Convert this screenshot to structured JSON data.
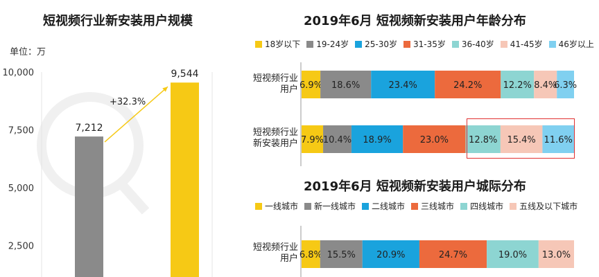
{
  "colors": {
    "yellow": "#f6c915",
    "gray": "#8a8a8a",
    "blue": "#1aa3dd",
    "orange": "#ec6a3d",
    "teal": "#8dd5d2",
    "pink": "#f6c7b7",
    "lightblue": "#80d0f0",
    "arrow": "#f6c915",
    "highlight": "#e03030"
  },
  "chart_data": [
    {
      "type": "bar",
      "title": "短视频行业新安装用户规模",
      "unit_label": "单位：万",
      "categories": [
        "",
        ""
      ],
      "values": [
        7212,
        9544
      ],
      "value_labels": [
        "7,212",
        "9,544"
      ],
      "bar_colors": [
        "#8a8a8a",
        "#f6c915"
      ],
      "yticks": [
        "2,500",
        "5,000",
        "7,500",
        "10,000"
      ],
      "ytick_values": [
        2500,
        5000,
        7500,
        10000
      ],
      "ylim": [
        0,
        10000
      ],
      "growth_label": "+32.3%"
    },
    {
      "type": "bar",
      "stacked": true,
      "orientation": "horizontal",
      "title": "2019年6月 短视频新安装用户年龄分布",
      "legend": [
        "18岁以下",
        "19-24岁",
        "25-30岁",
        "31-35岁",
        "36-40岁",
        "41-45岁",
        "46岁以上"
      ],
      "legend_colors": [
        "#f6c915",
        "#8a8a8a",
        "#1aa3dd",
        "#ec6a3d",
        "#8dd5d2",
        "#f6c7b7",
        "#80d0f0"
      ],
      "categories": [
        "短视频行业用户",
        "短视频行业新安装用户"
      ],
      "category_lines": [
        [
          "短视频行业",
          "用户"
        ],
        [
          "短视频行业",
          "新安装用户"
        ]
      ],
      "series_values": [
        [
          6.9,
          18.6,
          23.4,
          24.2,
          12.2,
          8.4,
          6.3
        ],
        [
          7.9,
          10.4,
          18.9,
          23.0,
          12.8,
          15.4,
          11.6
        ]
      ],
      "series_labels": [
        [
          "6.9%",
          "18.6%",
          "23.4%",
          "24.2%",
          "12.2%",
          "8.4%",
          "6.3%"
        ],
        [
          "7.9%",
          "10.4%",
          "18.9%",
          "23.0%",
          "12.8%",
          "15.4%",
          "11.6%"
        ]
      ]
    },
    {
      "type": "bar",
      "stacked": true,
      "orientation": "horizontal",
      "title": "2019年6月 短视频新安装用户城际分布",
      "legend": [
        "一线城市",
        "新一线城市",
        "二线城市",
        "三线城市",
        "四线城市",
        "五线及以下城市"
      ],
      "legend_colors": [
        "#f6c915",
        "#8a8a8a",
        "#1aa3dd",
        "#ec6a3d",
        "#8dd5d2",
        "#f6c7b7"
      ],
      "categories": [
        "短视频行业用户"
      ],
      "category_lines": [
        [
          "短视频行业",
          "用户"
        ]
      ],
      "series_values": [
        [
          6.8,
          15.5,
          20.9,
          24.7,
          19.0,
          13.0
        ]
      ],
      "series_labels": [
        [
          "6.8%",
          "15.5%",
          "20.9%",
          "24.7%",
          "19.0%",
          "13.0%"
        ]
      ]
    }
  ]
}
